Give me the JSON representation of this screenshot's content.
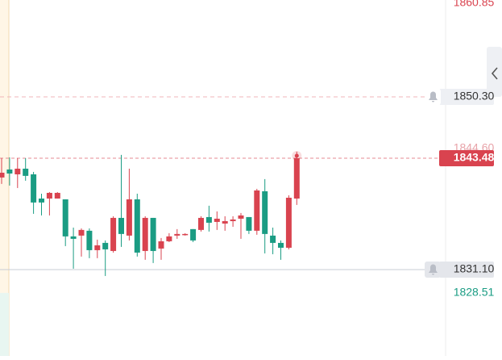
{
  "chart_data": {
    "type": "candlestick",
    "up_color": "#d9434f",
    "down_color": "#1a9c83",
    "ylim": [
      1821.5,
      1861.07
    ],
    "open": [
      1841.34,
      1842.23,
      1841.69,
      1842.32,
      1841.69,
      1839.0,
      1839.0,
      1839.0,
      1838.91,
      1834.79,
      1834.88,
      1835.42,
      1833.26,
      1834.07,
      1833.17,
      1836.85,
      1834.88,
      1838.91,
      1833.17,
      1836.85,
      1833.44,
      1834.25,
      1834.88,
      1834.97,
      1835.6,
      1835.51,
      1836.94,
      1836.4,
      1836.22,
      1836.49,
      1836.76,
      1836.94,
      1835.42,
      1839.81,
      1834.88,
      1834.07,
      1833.53,
      1839.0
    ],
    "high": [
      1843.49,
      1843.58,
      1843.49,
      1843.49,
      1841.96,
      1839.54,
      1839.72,
      1839.72,
      1838.91,
      1835.77,
      1835.68,
      1835.68,
      1834.43,
      1834.34,
      1837.03,
      1843.85,
      1842.32,
      1839.54,
      1837.03,
      1836.85,
      1834.61,
      1835.15,
      1835.6,
      1835.15,
      1835.6,
      1837.03,
      1838.2,
      1837.57,
      1837.03,
      1837.03,
      1837.39,
      1836.94,
      1840.08,
      1841.16,
      1835.77,
      1834.34,
      1839.36,
      1844.21
    ],
    "low": [
      1840.62,
      1840.44,
      1840.17,
      1840.98,
      1837.3,
      1837.12,
      1837.12,
      1839.0,
      1833.71,
      1831.2,
      1832.55,
      1832.37,
      1832.37,
      1830.39,
      1832.99,
      1833.62,
      1834.34,
      1832.55,
      1832.19,
      1831.83,
      1832.19,
      1834.16,
      1834.52,
      1834.88,
      1834.16,
      1835.33,
      1835.33,
      1835.51,
      1835.42,
      1835.86,
      1834.52,
      1835.06,
      1834.97,
      1832.9,
      1832.81,
      1832.19,
      1833.35,
      1838.29
    ],
    "close": [
      1841.87,
      1841.78,
      1842.32,
      1841.52,
      1838.56,
      1838.56,
      1839.63,
      1839.63,
      1834.79,
      1834.52,
      1835.51,
      1833.26,
      1833.8,
      1833.35,
      1836.85,
      1835.06,
      1838.91,
      1832.99,
      1836.85,
      1833.17,
      1834.25,
      1834.79,
      1835.06,
      1835.06,
      1834.34,
      1836.85,
      1836.31,
      1836.76,
      1836.49,
      1836.67,
      1837.12,
      1835.42,
      1839.9,
      1835.06,
      1834.07,
      1833.53,
      1839.09,
      1843.48
    ],
    "annotations": {
      "day_high": {
        "value": 1860.85,
        "label": "1860.85"
      },
      "alert_upper": {
        "value": 1850.3,
        "label": "1850.30"
      },
      "prev_price": {
        "value": 1844.6,
        "label": "1844.60"
      },
      "last_price": {
        "value": 1843.48,
        "label": "1843.48"
      },
      "alert_lower": {
        "value": 1831.1,
        "label": "1831.10"
      },
      "day_low": {
        "value": 1828.51,
        "label": "1828.51"
      }
    }
  }
}
